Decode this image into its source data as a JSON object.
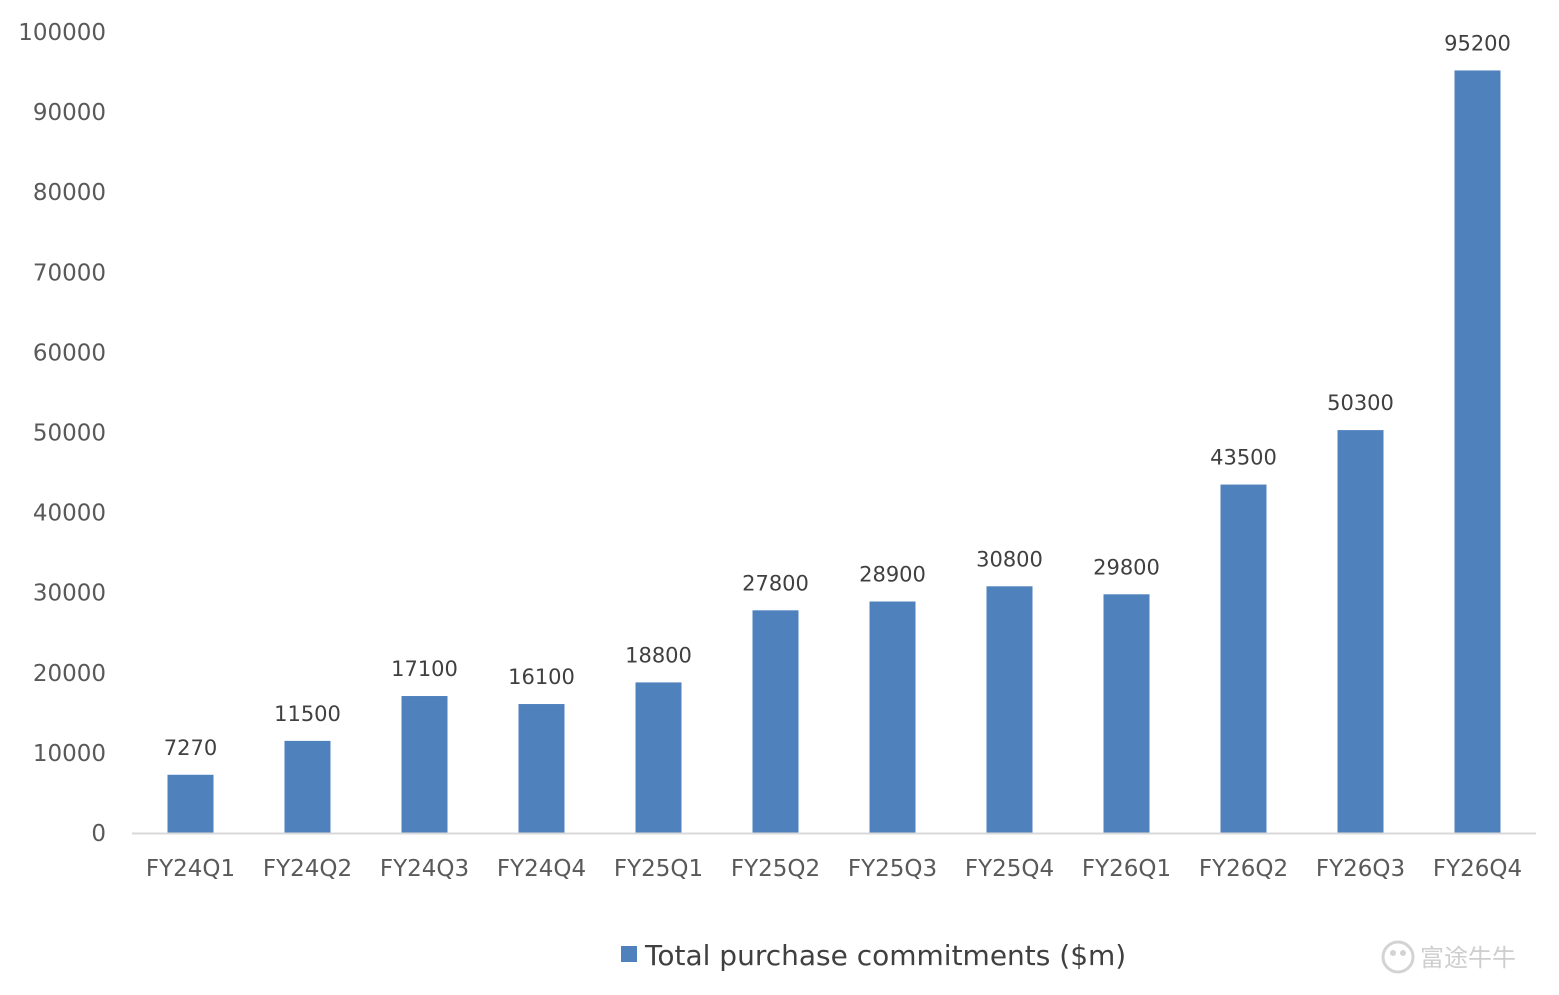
{
  "chart_data": {
    "type": "bar",
    "categories": [
      "FY24Q1",
      "FY24Q2",
      "FY24Q3",
      "FY24Q4",
      "FY25Q1",
      "FY25Q2",
      "FY25Q3",
      "FY25Q4",
      "FY26Q1",
      "FY26Q2",
      "FY26Q3",
      "FY26Q4"
    ],
    "series": [
      {
        "name": "Total purchase commitments ($m)",
        "values": [
          7270,
          11500,
          17100,
          16100,
          18800,
          27800,
          28900,
          30800,
          29800,
          43500,
          50300,
          95200
        ],
        "color": "#4f81bd"
      }
    ],
    "data_labels": [
      "7270",
      "11500",
      "17100",
      "16100",
      "18800",
      "27800",
      "28900",
      "30800",
      "29800",
      "43500",
      "50300",
      "95200"
    ],
    "yticks": [
      "0",
      "10000",
      "20000",
      "30000",
      "40000",
      "50000",
      "60000",
      "70000",
      "80000",
      "90000",
      "100000"
    ],
    "ylim": [
      0,
      100000
    ],
    "grid": false,
    "legend": "bottom-center",
    "title": "",
    "xlabel": "",
    "ylabel": ""
  },
  "watermark": {
    "text": "富途牛牛",
    "icon": "futu-logo-icon"
  },
  "colors": {
    "bar": "#4f81bd",
    "axis": "#d9d9d9",
    "tick_text": "#595959",
    "label_text": "#404040"
  }
}
